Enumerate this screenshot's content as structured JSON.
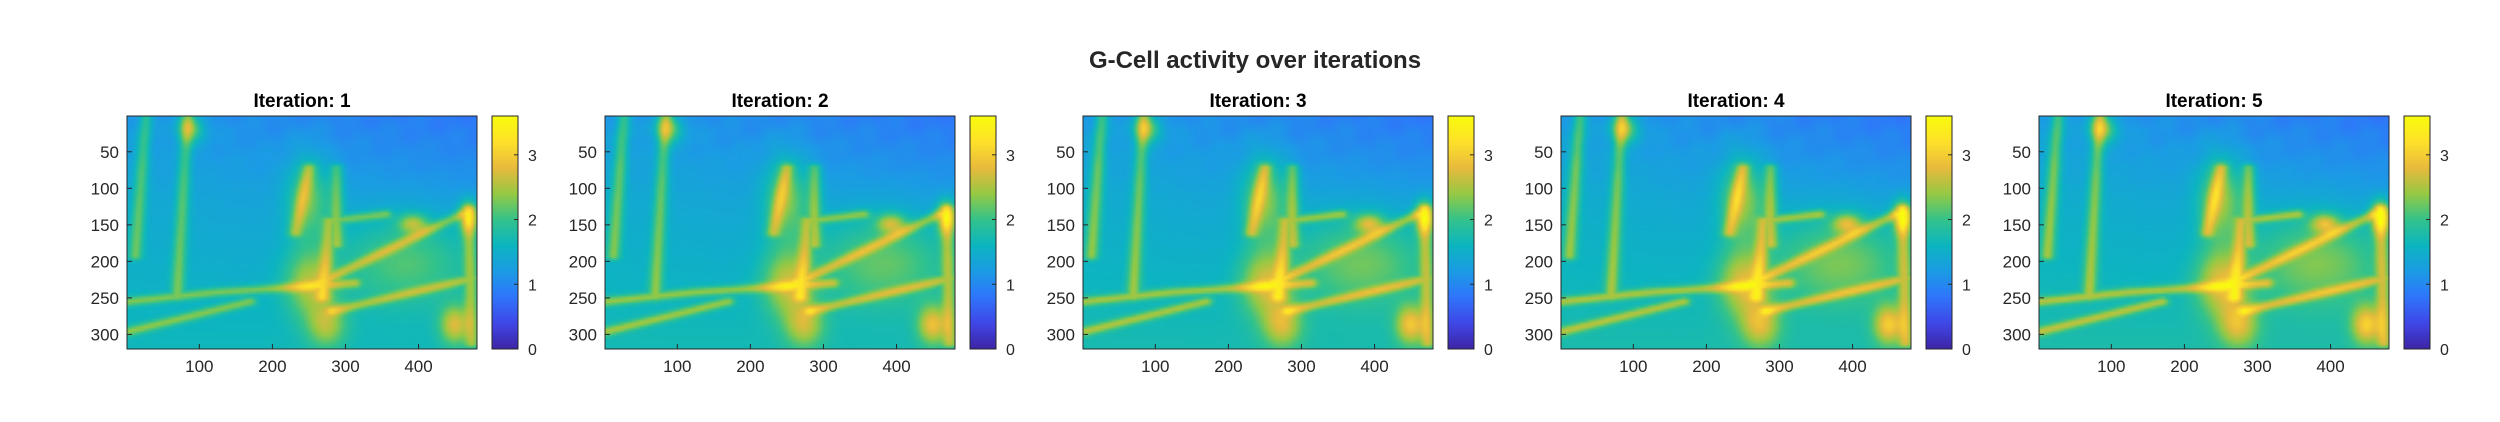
{
  "chart_data": {
    "type": "heatmap",
    "title": "G-Cell activity over iterations",
    "colormap": "parula",
    "colormap_stops": [
      "#3e26a8",
      "#3f48e8",
      "#2f76fb",
      "#1b9ce4",
      "#0cb5c0",
      "#33c38b",
      "#95c944",
      "#e7ba3c",
      "#fee02b",
      "#f9fb0e"
    ],
    "panels": [
      {
        "title": "Iteration: 1",
        "intensity": 0.9,
        "xlim": [
          1,
          480
        ],
        "ylim": [
          1,
          320
        ],
        "xticks": [
          100,
          200,
          300,
          400
        ],
        "yticks": [
          50,
          100,
          150,
          200,
          250,
          300
        ],
        "clim": [
          0,
          3.6
        ],
        "cticks": [
          0,
          1,
          2,
          3
        ]
      },
      {
        "title": "Iteration: 2",
        "intensity": 0.96,
        "xlim": [
          1,
          480
        ],
        "ylim": [
          1,
          320
        ],
        "xticks": [
          100,
          200,
          300,
          400
        ],
        "yticks": [
          50,
          100,
          150,
          200,
          250,
          300
        ],
        "clim": [
          0,
          3.6
        ],
        "cticks": [
          0,
          1,
          2,
          3
        ]
      },
      {
        "title": "Iteration: 3",
        "intensity": 1.0,
        "xlim": [
          1,
          480
        ],
        "ylim": [
          1,
          320
        ],
        "xticks": [
          100,
          200,
          300,
          400
        ],
        "yticks": [
          50,
          100,
          150,
          200,
          250,
          300
        ],
        "clim": [
          0,
          3.6
        ],
        "cticks": [
          0,
          1,
          2,
          3
        ]
      },
      {
        "title": "Iteration: 4",
        "intensity": 1.03,
        "xlim": [
          1,
          480
        ],
        "ylim": [
          1,
          320
        ],
        "xticks": [
          100,
          200,
          300,
          400
        ],
        "yticks": [
          50,
          100,
          150,
          200,
          250,
          300
        ],
        "clim": [
          0,
          3.6
        ],
        "cticks": [
          0,
          1,
          2,
          3
        ]
      },
      {
        "title": "Iteration: 5",
        "intensity": 1.05,
        "xlim": [
          1,
          480
        ],
        "ylim": [
          1,
          320
        ],
        "xticks": [
          100,
          200,
          300,
          400
        ],
        "yticks": [
          50,
          100,
          150,
          200,
          250,
          300
        ],
        "clim": [
          0,
          3.6
        ],
        "cticks": [
          0,
          1,
          2,
          3
        ]
      }
    ]
  }
}
